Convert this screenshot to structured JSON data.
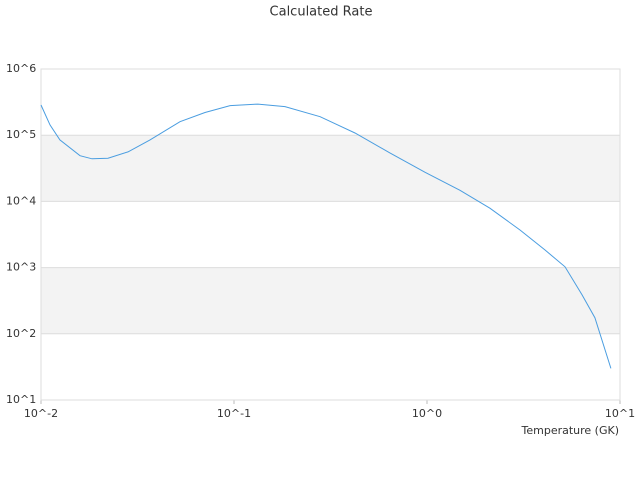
{
  "chart_data": {
    "type": "line",
    "title": "Calculated Rate",
    "xlabel": "Temperature (GK)",
    "xlog": true,
    "ylog": true,
    "grid": true,
    "x": [
      0.01,
      0.01114,
      0.01253,
      0.01592,
      0.01837,
      0.02223,
      0.02825,
      0.03673,
      0.05248,
      0.07079,
      0.0955,
      0.133,
      0.1837,
      0.2793,
      0.4236,
      0.6427,
      0.9772,
      1.483,
      2.118,
      3.034,
      4.083,
      5.188,
      6.353,
      7.413,
      8.974
    ],
    "series": [
      {
        "color": "#4a9de0",
        "values": [
          286000,
          143000,
          85000,
          49000,
          44000,
          45000,
          56000,
          85000,
          160000,
          220000,
          280000,
          295000,
          270000,
          190000,
          108000,
          54000,
          27500,
          14700,
          7900,
          3700,
          1850,
          1030,
          390,
          175,
          30
        ]
      }
    ],
    "xlim": [
      0.01,
      10
    ],
    "xticks": [
      {
        "value": 0.01,
        "label": "10^-2"
      },
      {
        "value": 0.1,
        "label": "10^-1"
      },
      {
        "value": 1,
        "label": "10^0"
      },
      {
        "value": 10,
        "label": "10^1"
      }
    ],
    "ylim": [
      10,
      1000000
    ],
    "yticks": [
      {
        "value": 10,
        "label": "10^1"
      },
      {
        "value": 100,
        "label": "10^2"
      },
      {
        "value": 1000,
        "label": "10^3"
      },
      {
        "value": 10000,
        "label": "10^4"
      },
      {
        "value": 100000,
        "label": "10^5"
      },
      {
        "value": 1000000,
        "label": "10^6"
      }
    ]
  }
}
